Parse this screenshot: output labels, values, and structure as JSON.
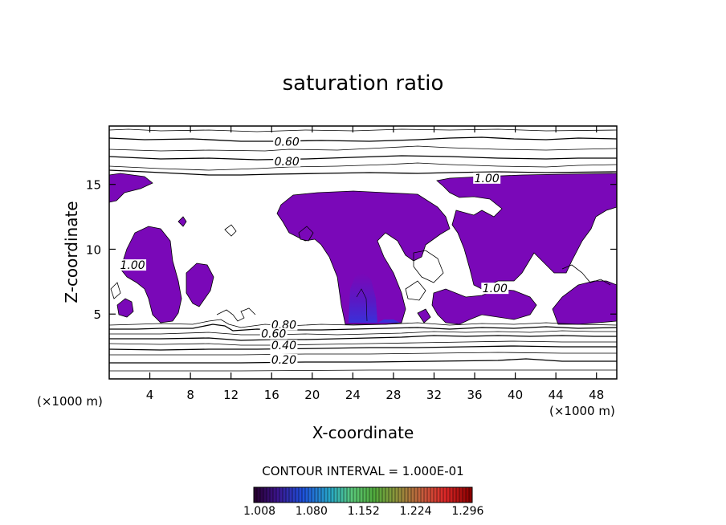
{
  "chart_data": {
    "type": "contour",
    "title": "saturation ratio",
    "xlabel": "X-coordinate",
    "ylabel": "Z-coordinate",
    "x_unit": "(×1000 m)",
    "y_unit": "(×1000 m)",
    "xlim": [
      0,
      50
    ],
    "ylim": [
      0,
      19.5
    ],
    "x_ticks": [
      4,
      8,
      12,
      16,
      20,
      24,
      28,
      32,
      36,
      40,
      44,
      48
    ],
    "x_tick_labels": [
      "4",
      "8",
      "12",
      "16",
      "20",
      "24",
      "28",
      "32",
      "36",
      "40",
      "44",
      "48"
    ],
    "y_ticks": [
      5,
      10,
      15
    ],
    "y_tick_labels": [
      "5",
      "10",
      "15"
    ],
    "contour_interval_text": "CONTOUR INTERVAL = 1.000E-01",
    "contour_labels": [
      {
        "text": "0.60",
        "x": 17.5,
        "y": 18.1
      },
      {
        "text": "0.80",
        "x": 17.5,
        "y": 16.6
      },
      {
        "text": "1.00",
        "x": 37.2,
        "y": 15.3
      },
      {
        "text": "1.00",
        "x": 38.0,
        "y": 6.8
      },
      {
        "text": "1.00",
        "x": 2.3,
        "y": 8.6
      },
      {
        "text": "0.80",
        "x": 17.2,
        "y": 4.0
      },
      {
        "text": "0.60",
        "x": 16.2,
        "y": 3.3
      },
      {
        "text": "0.40",
        "x": 17.2,
        "y": 2.4
      },
      {
        "text": "0.20",
        "x": 17.2,
        "y": 1.3
      }
    ],
    "colorbar": {
      "min": 1.008,
      "max": 1.31,
      "tick_values": [
        1.008,
        1.08,
        1.152,
        1.224,
        1.296
      ],
      "tick_labels": [
        "1.008",
        "1.080",
        "1.152",
        "1.224",
        "1.296"
      ]
    },
    "colors": {
      "supersaturated_fill": "#7a08b8",
      "high_core": "#4a10c0",
      "contour_line": "#000000"
    }
  }
}
